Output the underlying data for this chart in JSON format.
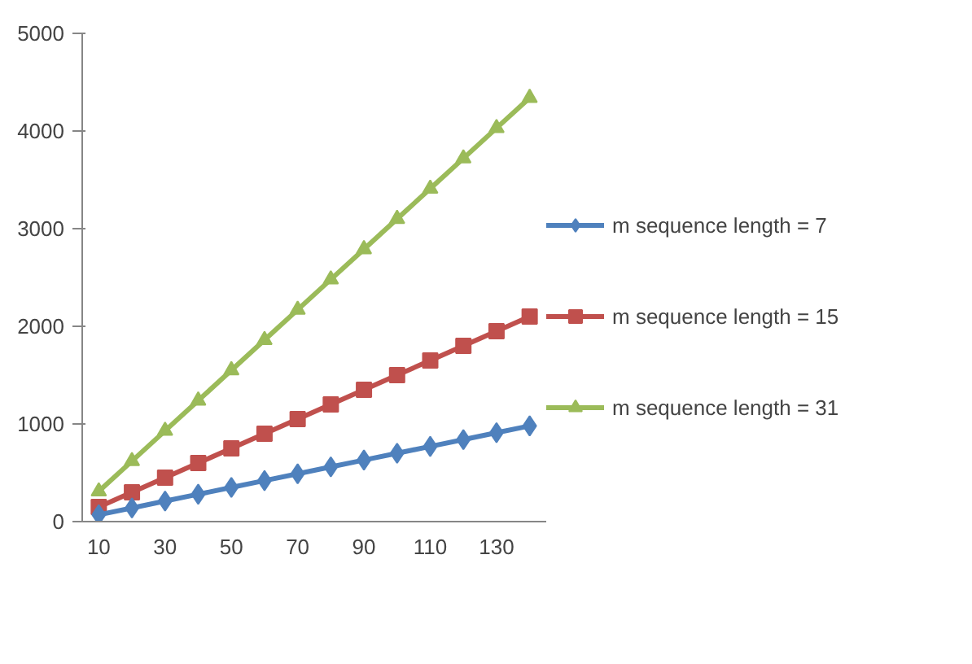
{
  "chart_data": {
    "type": "line",
    "categories": [
      "10",
      null,
      "30",
      null,
      "50",
      null,
      "70",
      null,
      "90",
      null,
      "110",
      null,
      "130",
      null
    ],
    "series": [
      {
        "name": "m sequence length = 7",
        "color": "#4f81bd",
        "marker": "diamond",
        "values": [
          70,
          140,
          210,
          280,
          350,
          420,
          490,
          560,
          630,
          700,
          770,
          840,
          910,
          980
        ]
      },
      {
        "name": "m sequence length = 15",
        "color": "#c0504d",
        "marker": "square",
        "values": [
          150,
          300,
          450,
          600,
          750,
          900,
          1050,
          1200,
          1350,
          1500,
          1650,
          1800,
          1950,
          2100
        ]
      },
      {
        "name": "m sequence length = 31",
        "color": "#9bbb59",
        "marker": "triangle",
        "values": [
          310,
          620,
          930,
          1240,
          1550,
          1860,
          2170,
          2480,
          2790,
          3100,
          3410,
          3720,
          4030,
          4340
        ]
      }
    ],
    "ylim": [
      0,
      5000
    ],
    "yticks": [
      0,
      1000,
      2000,
      3000,
      4000,
      5000
    ],
    "grid": false,
    "legend": "right",
    "line_style": "solid"
  }
}
